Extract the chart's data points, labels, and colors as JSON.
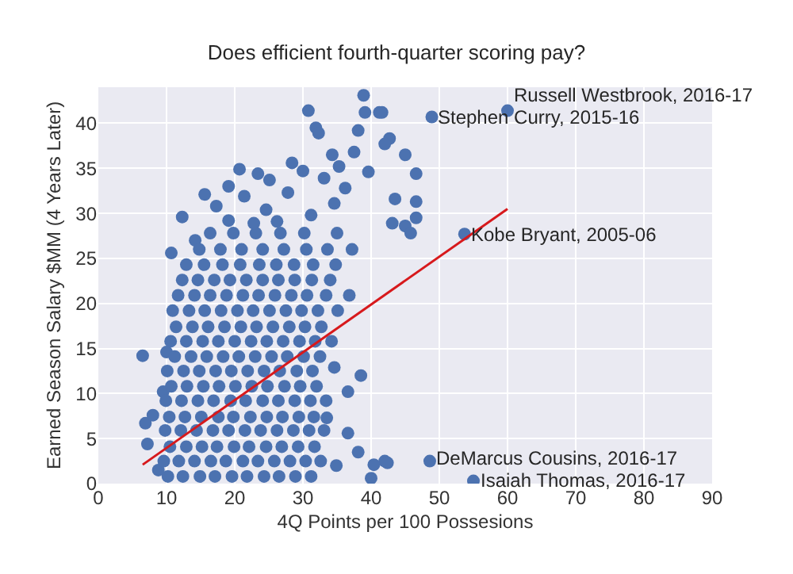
{
  "chart_data": {
    "type": "scatter",
    "title": "Does efficient fourth-quarter scoring pay?",
    "xlabel": "4Q Points per 100 Possesions",
    "ylabel": "Earned Season Salary $MM (4 Years Later)",
    "xlim": [
      0,
      90
    ],
    "ylim": [
      0,
      44
    ],
    "xticks": [
      0,
      10,
      20,
      30,
      40,
      50,
      60,
      70,
      80,
      90
    ],
    "yticks": [
      0,
      5,
      10,
      15,
      20,
      25,
      30,
      35,
      40
    ],
    "grid": true,
    "marker": "circle",
    "series": [
      {
        "color": "#4c72b0",
        "x": [
          60,
          48.9,
          53.7,
          48.6,
          55,
          42,
          30.8,
          38.9,
          39.1,
          41.2,
          31.9,
          32.3,
          38.1,
          12.3,
          19.1,
          19.1,
          23.4,
          30,
          34.3,
          42.7,
          39.6,
          10.7,
          14.2,
          41.6,
          42,
          45,
          46.6,
          43.5,
          46.6,
          46.6,
          45,
          43.1,
          45.8,
          38.5,
          36.6,
          36.6,
          38.1,
          40,
          40.4,
          42.4,
          34.6,
          33.5,
          34.9,
          6.5,
          6.9,
          7.2,
          8,
          8.8,
          10,
          9.5,
          10.2,
          12.4,
          14.9,
          17.1,
          19.6,
          21.8,
          24.3,
          26.5,
          28.9,
          31.2,
          9.6,
          11.8,
          14.1,
          16.5,
          18.7,
          21.2,
          23.4,
          25.8,
          28.1,
          30.4,
          32.6,
          10.5,
          12.9,
          15.2,
          17.4,
          19.9,
          22.1,
          24.6,
          26.9,
          29.3,
          31.7,
          9.8,
          12.1,
          14.4,
          16.8,
          19.1,
          21.5,
          23.8,
          26.2,
          28.6,
          30.9,
          33.1,
          10.4,
          12.7,
          15.1,
          17.6,
          19.8,
          22.3,
          24.7,
          27.0,
          29.4,
          31.6,
          9.9,
          12.2,
          14.6,
          16.9,
          19.4,
          21.6,
          24.1,
          26.4,
          28.8,
          31.1,
          33.4,
          10.7,
          13.0,
          15.4,
          17.7,
          20.1,
          22.5,
          24.8,
          27.3,
          29.6,
          32.0,
          10.1,
          12.5,
          14.8,
          17.2,
          19.5,
          21.9,
          24.3,
          26.6,
          29.1,
          31.4,
          11.2,
          13.6,
          15.9,
          18.3,
          20.6,
          23.0,
          25.4,
          27.7,
          30.1,
          32.5,
          10.6,
          12.9,
          15.3,
          17.6,
          20.0,
          22.4,
          24.7,
          27.1,
          29.5,
          31.8,
          34.2,
          11.4,
          13.8,
          16.1,
          18.5,
          20.9,
          23.2,
          25.6,
          28.0,
          30.3,
          32.7,
          10.9,
          13.3,
          15.6,
          18.0,
          20.4,
          22.7,
          25.1,
          27.5,
          29.8,
          32.2,
          35.1,
          11.7,
          14.1,
          16.4,
          18.8,
          21.2,
          23.5,
          25.9,
          28.3,
          30.6,
          33.4,
          36.8,
          12.3,
          14.6,
          17.0,
          19.3,
          21.7,
          24.1,
          26.4,
          28.8,
          31.3,
          34.0,
          12.9,
          15.5,
          18.2,
          20.8,
          23.6,
          26.1,
          28.7,
          31.5,
          34.8,
          14.8,
          17.9,
          21.0,
          24.1,
          27.2,
          30.5,
          33.6,
          37.2,
          16.4,
          19.8,
          23.1,
          26.7,
          30.2,
          35.0,
          17.3,
          21.4,
          24.6,
          27.8,
          31.2,
          34.6,
          22.8,
          26.2,
          36.2,
          28.4,
          25.1,
          35.3,
          37.5,
          33.1,
          15.6,
          20.7
        ],
        "values": [
          41.4,
          40.7,
          27.7,
          2.5,
          0.3,
          2.5,
          41.4,
          43.1,
          41.2,
          41.2,
          39.5,
          38.9,
          39.2,
          29.6,
          33.0,
          29.2,
          34.4,
          34.7,
          36.5,
          38.3,
          34.6,
          25.6,
          27,
          41.2,
          37.7,
          36.5,
          34.4,
          31.6,
          31.3,
          29.5,
          28.6,
          28.9,
          27.8,
          12,
          10.2,
          5.6,
          3.5,
          0.6,
          2.1,
          2.3,
          12.9,
          7.3,
          2,
          14.2,
          6.7,
          4.4,
          7.6,
          1.5,
          14.6,
          10.2,
          0.8,
          0.8,
          0.8,
          0.8,
          0.8,
          0.8,
          0.8,
          0.8,
          0.8,
          0.8,
          2.5,
          2.5,
          2.5,
          2.5,
          2.5,
          2.5,
          2.5,
          2.5,
          2.5,
          2.5,
          2.5,
          4.1,
          4.1,
          4.1,
          4.1,
          4.1,
          4.1,
          4.1,
          4.1,
          4.1,
          4.1,
          5.9,
          5.9,
          5.9,
          5.9,
          5.9,
          5.9,
          5.9,
          5.9,
          5.9,
          5.9,
          5.9,
          7.4,
          7.4,
          7.4,
          7.4,
          7.4,
          7.4,
          7.4,
          7.4,
          7.4,
          7.4,
          9.2,
          9.2,
          9.2,
          9.2,
          9.2,
          9.2,
          9.2,
          9.2,
          9.2,
          9.2,
          9.2,
          10.8,
          10.8,
          10.8,
          10.8,
          10.8,
          10.8,
          10.8,
          10.8,
          10.8,
          10.8,
          12.5,
          12.5,
          12.5,
          12.5,
          12.5,
          12.5,
          12.5,
          12.5,
          12.5,
          12.5,
          14.1,
          14.1,
          14.1,
          14.1,
          14.1,
          14.1,
          14.1,
          14.1,
          14.1,
          14.1,
          15.8,
          15.8,
          15.8,
          15.8,
          15.8,
          15.8,
          15.8,
          15.8,
          15.8,
          15.8,
          15.8,
          17.4,
          17.4,
          17.4,
          17.4,
          17.4,
          17.4,
          17.4,
          17.4,
          17.4,
          17.4,
          19.2,
          19.2,
          19.2,
          19.2,
          19.2,
          19.2,
          19.2,
          19.2,
          19.2,
          19.2,
          19.2,
          20.9,
          20.9,
          20.9,
          20.9,
          20.9,
          20.9,
          20.9,
          20.9,
          20.9,
          20.9,
          20.9,
          22.6,
          22.6,
          22.6,
          22.6,
          22.6,
          22.6,
          22.6,
          22.6,
          22.6,
          22.6,
          24.3,
          24.3,
          24.3,
          24.3,
          24.3,
          24.3,
          24.3,
          24.3,
          24.3,
          26.0,
          26.0,
          26.0,
          26.0,
          26.0,
          26.0,
          26.0,
          26.0,
          27.8,
          27.8,
          27.8,
          27.8,
          27.8,
          27.8,
          30.8,
          31.9,
          30.4,
          32.3,
          29.8,
          31.1,
          28.9,
          29.1,
          32.8,
          35.6,
          33.7,
          35.2,
          36.8,
          33.9,
          32.1,
          34.9
        ]
      },
      {
        "type": "line",
        "color": "#d7191c",
        "marker": "none",
        "x": [
          6.5,
          60
        ],
        "values": [
          2.1,
          30.5
        ]
      }
    ],
    "annotations": [
      {
        "text": "Russell Westbrook, 2016-17",
        "x": 60,
        "y": 41.4
      },
      {
        "text": "Stephen Curry, 2015-16",
        "x": 48.9,
        "y": 40.7
      },
      {
        "text": "Kobe Bryant, 2005-06",
        "x": 53.7,
        "y": 27.7
      },
      {
        "text": "DeMarcus Cousins, 2016-17",
        "x": 48.6,
        "y": 2.5
      },
      {
        "text": "Isaiah Thomas, 2016-17",
        "x": 55,
        "y": 0.3
      }
    ]
  }
}
